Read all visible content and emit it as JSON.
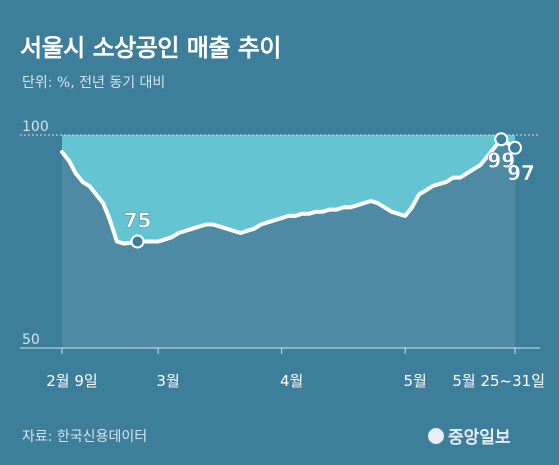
{
  "header": {
    "title": "서울시 소상공인 매출 추이",
    "subtitle": "단위: %, 전년 동기 대비"
  },
  "footer": {
    "source": "자료: 한국신용데이터",
    "logo_text": "중앙일보"
  },
  "colors": {
    "background": "#3d7e9b",
    "fill": "#64c4d1",
    "plot_area": "#4f8aa5",
    "line": "#ffffff",
    "marker": "#3d7e9b"
  },
  "chart_data": {
    "type": "line",
    "title": "서울시 소상공인 매출 추이",
    "subtitle": "단위: %, 전년 동기 대비",
    "ylim": [
      50,
      100
    ],
    "yticks": [
      100,
      50
    ],
    "x_ticks": [
      "2월 9일",
      "3월",
      "4월",
      "5월",
      "5월 25~31일"
    ],
    "x_tick_index": [
      0,
      14,
      32,
      50,
      66
    ],
    "fill_to": 100,
    "reference_line": 100,
    "values": [
      96,
      94,
      91,
      89,
      88,
      86,
      84,
      80,
      75,
      74.5,
      74.7,
      75,
      75,
      75,
      75,
      75.5,
      76,
      77,
      77.5,
      78,
      78.5,
      79,
      79,
      78.5,
      78,
      77.5,
      77,
      77.5,
      78,
      79,
      79.5,
      80,
      80.5,
      81,
      81,
      81.5,
      81.5,
      82,
      82,
      82.5,
      82.5,
      83,
      83,
      83.5,
      84,
      84.5,
      84,
      83,
      82,
      81.5,
      81,
      83,
      86,
      87,
      88,
      88.5,
      89,
      90,
      90,
      91,
      92,
      93,
      95,
      97,
      99,
      98,
      97
    ],
    "labeled_points": [
      {
        "index": 11,
        "value": 75
      },
      {
        "index": 64,
        "value": 99
      },
      {
        "index": 66,
        "value": 97
      }
    ]
  }
}
